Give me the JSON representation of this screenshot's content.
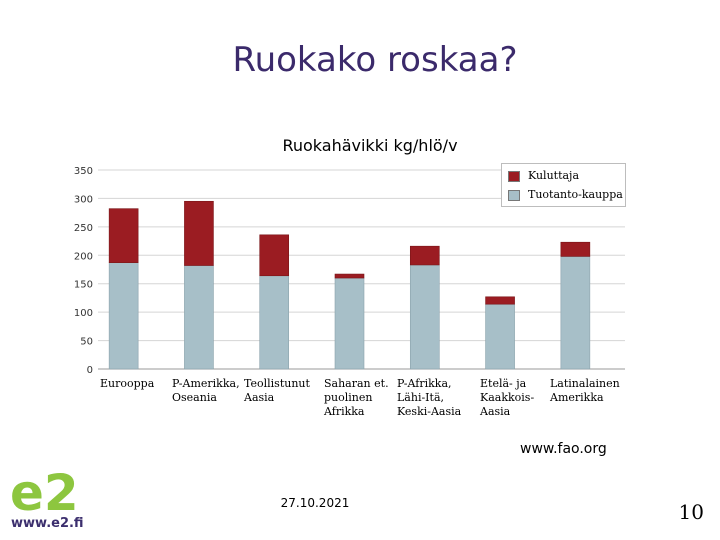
{
  "slide": {
    "title": "Ruokako roskaa?",
    "source": "www.fao.org",
    "date": "27.10.2021",
    "page_number": "10",
    "logo_text": "e2",
    "logo_url": "www.e2.fi"
  },
  "colors": {
    "consumer": "#9b1c22",
    "production": "#a7bfc8",
    "title": "#3b2a6b",
    "logo_green": "#8dc63f",
    "logo_purple": "#3c2f6e"
  },
  "chart_data": {
    "type": "bar",
    "stacked": true,
    "title": "Ruokahävikki kg/hlö/v",
    "xlabel": "",
    "ylabel": "",
    "ylim": [
      0,
      350
    ],
    "yticks": [
      "0",
      "50",
      "100",
      "150",
      "200",
      "250",
      "300",
      "350"
    ],
    "grid": true,
    "legend_position": "top-right",
    "categories": [
      [
        "Eurooppa"
      ],
      [
        "P-Amerikka,",
        "Oseania"
      ],
      [
        "Teollistunut",
        "Aasia"
      ],
      [
        "Saharan et.",
        "puolinen",
        "Afrikka"
      ],
      [
        "P-Afrikka,",
        "Lähi-Itä,",
        "Keski-Aasia"
      ],
      [
        "Etelä- ja",
        "Kaakkois-",
        "Aasia"
      ],
      [
        "Latinalainen",
        "Amerikka"
      ]
    ],
    "series": [
      {
        "name": "Tuotanto-kauppa",
        "values": [
          187,
          182,
          164,
          160,
          183,
          114,
          198
        ]
      },
      {
        "name": "Kuluttaja",
        "values": [
          95,
          113,
          72,
          7,
          33,
          13,
          25
        ]
      }
    ]
  }
}
